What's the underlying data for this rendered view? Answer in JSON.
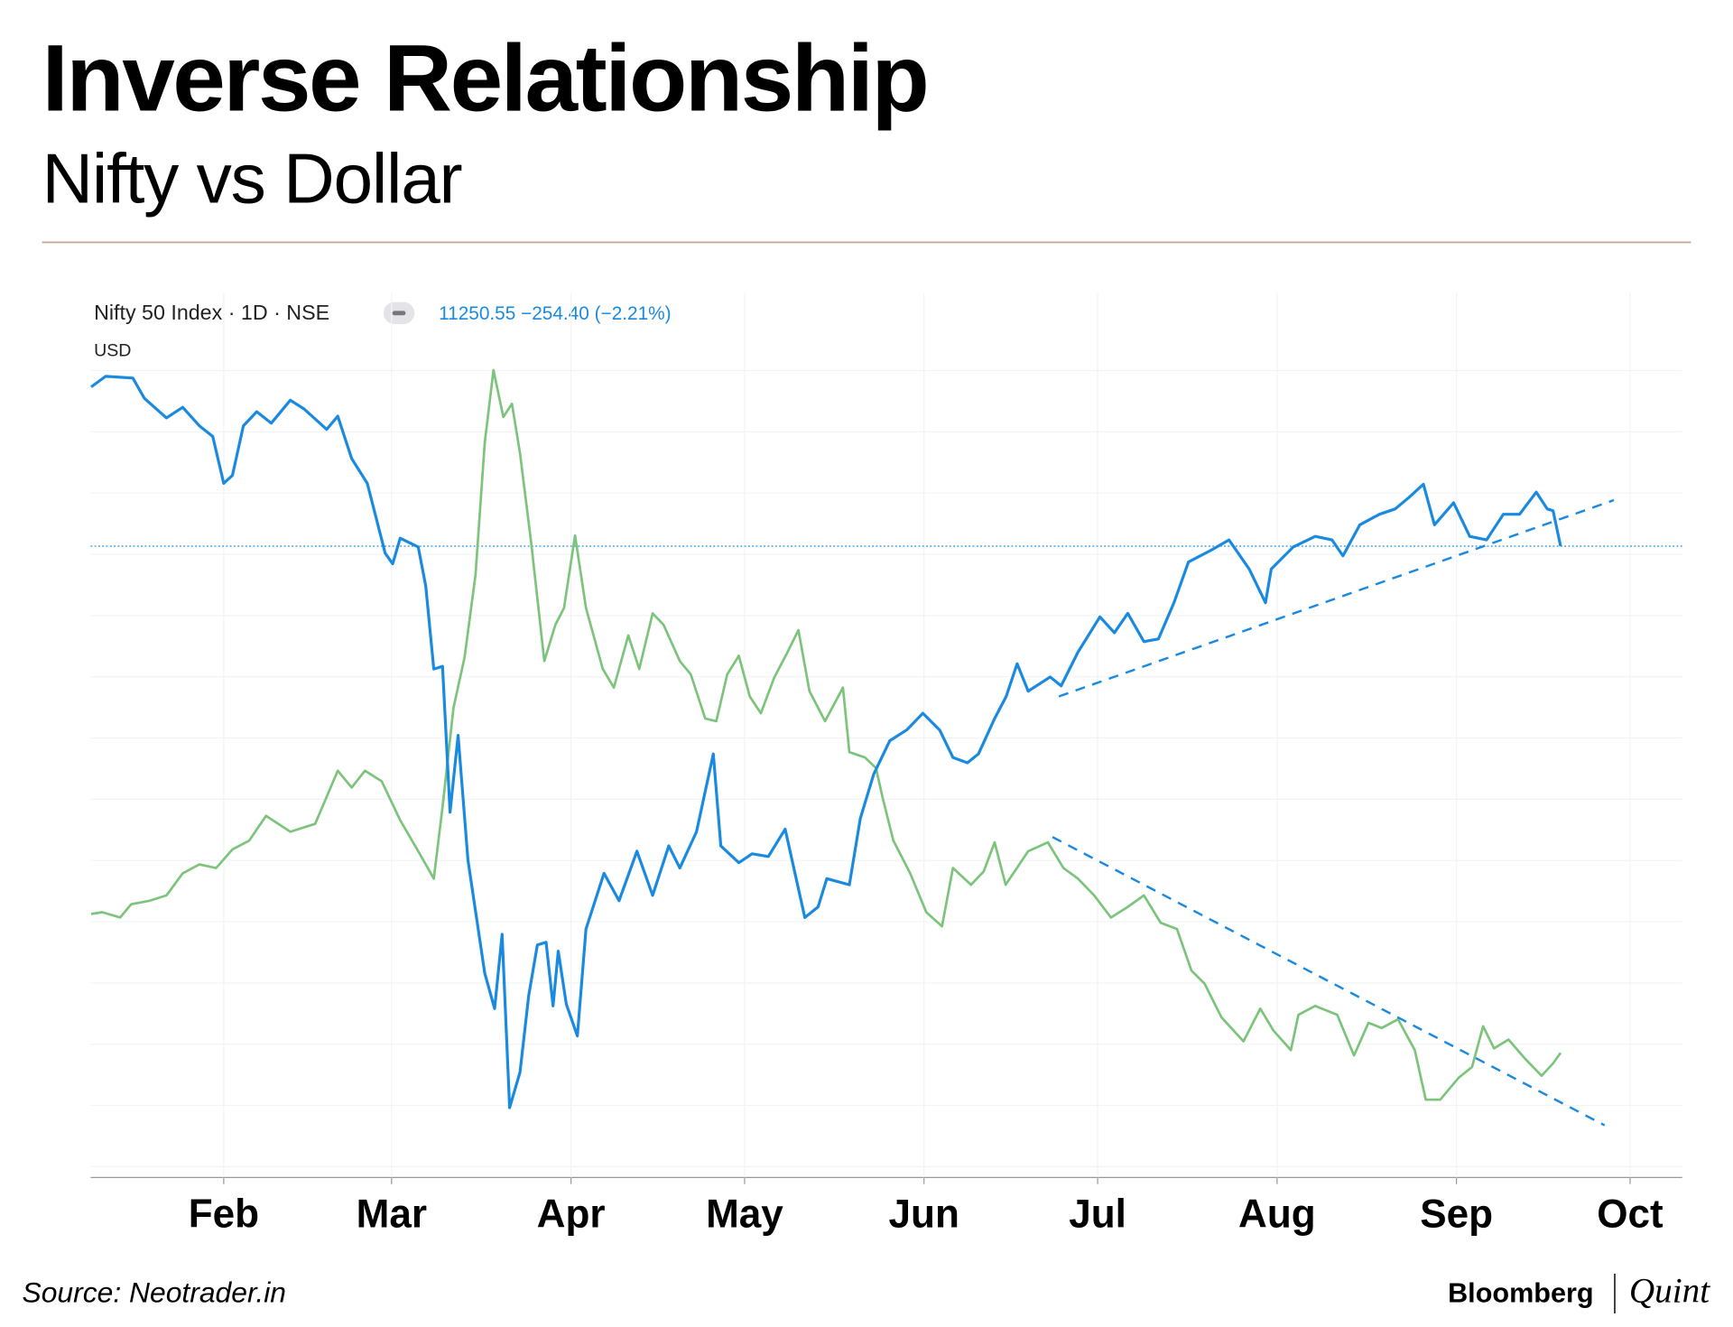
{
  "title": "Inverse Relationship",
  "subtitle": "Nifty vs Dollar",
  "source": "Source: Neotrader.in",
  "brand": "Bloomberg",
  "brand_suffix": "Quint",
  "chart_data": {
    "type": "line",
    "legend_header": "Nifty 50 Index · 1D · NSE",
    "quote": "11250.55 −254.40 (−2.21%)",
    "unit": "USD",
    "xlim": [
      8,
      283
    ],
    "ylim": [
      0,
      100
    ],
    "xticks": [
      {
        "value": 31,
        "label": "Feb"
      },
      {
        "value": 60,
        "label": "Mar"
      },
      {
        "value": 91,
        "label": "Apr"
      },
      {
        "value": 121,
        "label": "May"
      },
      {
        "value": 152,
        "label": "Jun"
      },
      {
        "value": 182,
        "label": "Jul"
      },
      {
        "value": 213,
        "label": "Aug"
      },
      {
        "value": 244,
        "label": "Sep"
      },
      {
        "value": 274,
        "label": "Oct"
      }
    ],
    "series": [
      {
        "color": "#1a8ae0",
        "x": [
          8.1,
          10.6,
          15.3,
          17.3,
          21.1,
          23.9,
          26.8,
          29.1,
          31,
          32.5,
          34.4,
          36.7,
          39.2,
          42.5,
          44.9,
          48.8,
          50.7,
          53.1,
          55.8,
          58.9,
          60.2,
          61.5,
          64.6,
          65.9,
          67.3,
          68.8,
          70.1,
          71.5,
          73.2,
          76.1,
          77.8,
          79.1,
          80.4,
          82.2,
          83.7,
          85.2,
          86.7,
          87.9,
          88.8,
          90.2,
          92.1,
          93.6,
          96.7,
          99.3,
          102.4,
          105.1,
          107.9,
          109.8,
          112.7,
          115.6,
          116.9,
          120.0,
          122.3,
          125.1,
          128.0,
          131.4,
          133.7,
          135.2,
          139.1,
          141.0,
          143.3,
          146.1,
          149.0,
          151.8,
          154.7,
          157.0,
          159.5,
          161.4,
          164.2,
          166.2,
          168.1,
          170.0,
          173.8,
          175.7,
          178.6,
          182.4,
          184.9,
          187.2,
          190.0,
          192.5,
          195.2,
          197.7,
          201.5,
          204.7,
          208.2,
          211.0,
          212.0,
          215.8,
          219.6,
          222.5,
          224.4,
          227.3,
          230.7,
          233.4,
          235.8,
          238.3,
          240.2,
          243.5,
          246.3,
          249.2,
          252.1,
          254.9,
          257.8,
          259.7,
          260.7,
          262.0
        ],
        "values": [
          89.4,
          90.6,
          90.4,
          88.1,
          85.9,
          87.1,
          85.0,
          83.8,
          78.5,
          79.4,
          85.0,
          86.6,
          85.3,
          87.9,
          86.9,
          84.6,
          86.1,
          81.3,
          78.5,
          70.6,
          69.4,
          72.3,
          71.3,
          66.9,
          57.5,
          57.8,
          41.3,
          50.0,
          35.9,
          23.1,
          19.1,
          27.5,
          7.9,
          11.9,
          20.6,
          26.3,
          26.6,
          19.4,
          25.6,
          19.6,
          16.0,
          28.1,
          34.4,
          31.3,
          36.9,
          31.9,
          37.5,
          35.0,
          39.1,
          47.9,
          37.5,
          35.6,
          36.6,
          36.3,
          39.4,
          29.4,
          30.6,
          33.8,
          33.1,
          40.6,
          45.6,
          49.4,
          50.6,
          52.5,
          50.6,
          47.5,
          46.9,
          47.9,
          51.9,
          54.4,
          58.1,
          55.0,
          56.6,
          55.6,
          59.4,
          63.4,
          61.6,
          63.8,
          60.6,
          60.9,
          65.0,
          69.6,
          70.9,
          72.1,
          68.8,
          65.0,
          68.8,
          71.3,
          72.5,
          72.1,
          70.3,
          73.8,
          75.0,
          75.6,
          76.9,
          78.4,
          73.8,
          76.3,
          72.5,
          72.1,
          75.0,
          75.0,
          77.5,
          75.6,
          75.4,
          71.4
        ],
        "trend": {
          "x": [
            175.3,
            271.2
          ],
          "values": [
            54.4,
            76.6
          ]
        }
      },
      {
        "color": "#7cc47c",
        "x": [
          8.1,
          10.0,
          13.1,
          15.0,
          18.2,
          21.1,
          23.9,
          26.8,
          29.7,
          32.5,
          35.4,
          38.3,
          42.5,
          46.8,
          50.7,
          53.1,
          55.4,
          58.3,
          61.5,
          64.6,
          67.3,
          68.8,
          70.7,
          72.6,
          74.5,
          76.1,
          77.6,
          79.3,
          80.8,
          82.2,
          84.1,
          86.4,
          88.3,
          89.8,
          91.7,
          93.6,
          96.5,
          98.4,
          100.9,
          102.8,
          105.1,
          107.0,
          109.8,
          111.7,
          114.2,
          116.1,
          118.0,
          120.0,
          121.9,
          123.8,
          126.1,
          128.4,
          130.3,
          132.2,
          134.9,
          138.0,
          139.1,
          141.8,
          143.7,
          144.8,
          146.7,
          149.6,
          152.4,
          155.1,
          157.0,
          160.1,
          162.3,
          164.2,
          166.1,
          170.0,
          173.4,
          176.1,
          178.6,
          181.4,
          184.3,
          187.2,
          190.0,
          192.9,
          195.7,
          198.2,
          200.5,
          203.4,
          207.2,
          210.1,
          212.4,
          215.4,
          216.7,
          219.6,
          223.4,
          226.3,
          228.8,
          231.1,
          233.9,
          236.8,
          238.7,
          241.2,
          244.4,
          246.7,
          248.6,
          250.5,
          253.0,
          255.9,
          258.7,
          260.7,
          262.0
        ],
        "values": [
          29.8,
          30.0,
          29.4,
          30.9,
          31.3,
          31.9,
          34.4,
          35.4,
          35.0,
          37.1,
          38.1,
          40.9,
          39.1,
          40.0,
          46.0,
          44.1,
          46.0,
          44.8,
          40.4,
          36.9,
          33.8,
          41.9,
          53.1,
          58.8,
          68.1,
          83.1,
          91.3,
          86.0,
          87.5,
          81.9,
          71.9,
          58.4,
          62.5,
          64.4,
          72.6,
          64.4,
          57.5,
          55.4,
          61.3,
          57.5,
          63.8,
          62.5,
          58.4,
          56.9,
          51.9,
          51.6,
          56.9,
          59.0,
          54.4,
          52.5,
          56.5,
          59.4,
          61.9,
          55.0,
          51.6,
          55.4,
          48.1,
          47.5,
          46.3,
          43.1,
          38.1,
          34.4,
          30.0,
          28.4,
          35.0,
          33.1,
          34.6,
          37.9,
          33.1,
          36.9,
          37.9,
          35.0,
          33.8,
          31.9,
          29.4,
          30.6,
          31.9,
          28.8,
          28.1,
          23.4,
          21.9,
          18.1,
          15.4,
          19.1,
          16.6,
          14.4,
          18.4,
          19.4,
          18.4,
          13.8,
          17.5,
          16.9,
          17.9,
          14.4,
          8.8,
          8.8,
          11.3,
          12.5,
          17.1,
          14.6,
          15.6,
          13.4,
          11.5,
          12.9,
          14.1
        ],
        "trend": {
          "x": [
            174.2,
            269.6
          ],
          "values": [
            38.5,
            5.9
          ]
        }
      }
    ]
  }
}
